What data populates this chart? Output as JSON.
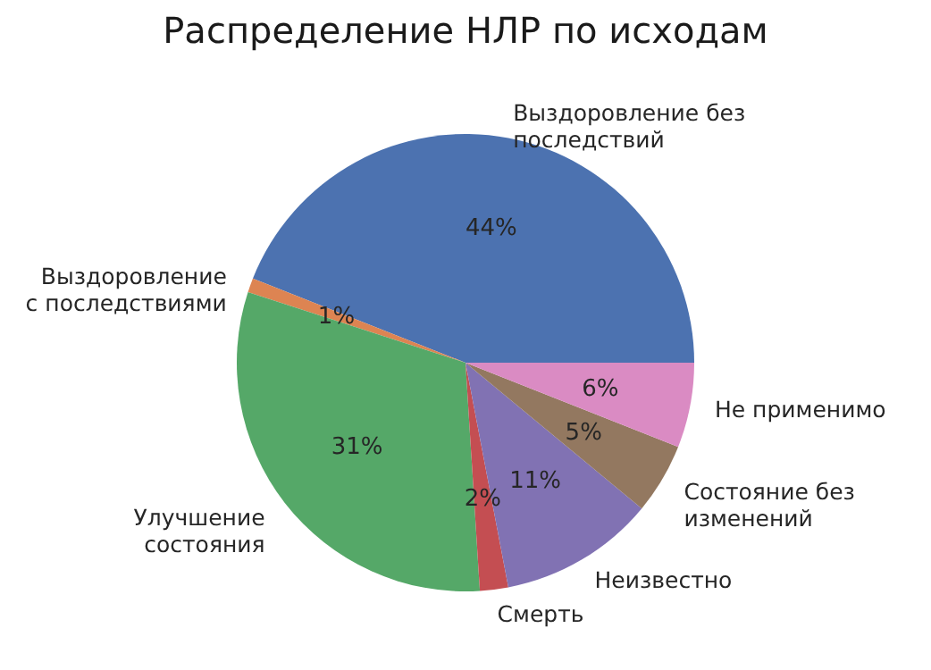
{
  "chart_data": {
    "type": "pie",
    "title": "Распределение НЛР по исходам",
    "categories": [
      "Выздоровление без\nпоследствий",
      "Выздоровление\nс последствиями",
      "Улучшение\nсостояния",
      "Смерть",
      "Неизвестно",
      "Состояние без\nизменений",
      "Не применимо"
    ],
    "values": [
      44,
      1,
      31,
      2,
      11,
      5,
      6
    ],
    "colors": [
      "#4c72b0",
      "#dd8452",
      "#55a868",
      "#c44e52",
      "#8172b3",
      "#937860",
      "#da8bc3"
    ],
    "value_labels": [
      "44%",
      "1%",
      "31%",
      "2%",
      "11%",
      "5%",
      "6%"
    ]
  }
}
